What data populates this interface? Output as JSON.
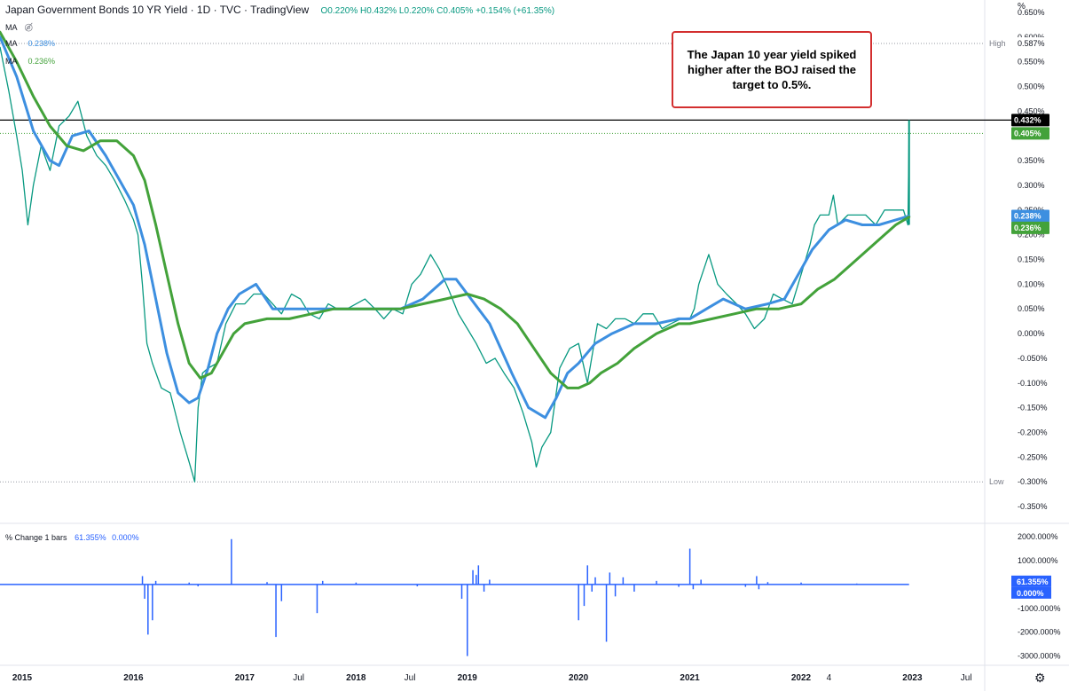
{
  "header": {
    "title": "Japan Government Bonds 10 YR Yield · 1D · TVC · TradingView",
    "ohlc": "O0.220% H0.432% L0.220% C0.405% +0.154% (+61.35%)",
    "ma1_label": "MA",
    "ma2_label": "MA",
    "ma2_value": "0.238%",
    "ma3_label": "MA",
    "ma3_value": "0.236%"
  },
  "annotation": "The Japan 10 year yield spiked higher after the BOJ raised the target to 0.5%.",
  "axis_unit": "%",
  "pane2_header": {
    "label": "% Change 1 bars",
    "value1": "61.355%",
    "value2": "0.000%"
  },
  "colors": {
    "price": "#089981",
    "price_down": "#f23645",
    "ma_blue": "#3d8fe0",
    "ma_green": "#43a23a",
    "pct_line": "#2962ff",
    "annotation_border": "#d32f2f"
  },
  "icons": {
    "eye_hidden": "eye-off-icon",
    "settings": "gear-icon"
  },
  "chart_data": [
    {
      "type": "line",
      "title": "Japan Government Bonds 10 YR Yield",
      "ylabel": "%",
      "ylim": [
        -0.375,
        0.675
      ],
      "y_ticks": [
        "0.650%",
        "0.600%",
        "0.550%",
        "0.500%",
        "0.450%",
        "0.400%",
        "0.350%",
        "0.300%",
        "0.250%",
        "0.200%",
        "0.150%",
        "0.100%",
        "0.050%",
        "0.000%",
        "-0.050%",
        "-0.100%",
        "-0.150%",
        "-0.200%",
        "-0.250%",
        "-0.300%",
        "-0.350%"
      ],
      "x_ticks": [
        "2015",
        "2016",
        "2017",
        "Jul",
        "2018",
        "Jul",
        "2019",
        "2020",
        "2021",
        "2022",
        "4",
        "2023",
        "Jul"
      ],
      "x_tick_dates": [
        2015.0,
        2016.0,
        2017.0,
        2017.5,
        2018.0,
        2018.5,
        2019.0,
        2020.0,
        2021.0,
        2022.0,
        2022.25,
        2023.0,
        2023.5
      ],
      "xlim": [
        2014.8,
        2023.65
      ],
      "high": {
        "label": "High",
        "value": 0.587,
        "text": "0.587%"
      },
      "low": {
        "label": "Low",
        "value": -0.3,
        "text": "-0.300%"
      },
      "last_price": {
        "value": 0.432,
        "text": "0.432%"
      },
      "close_price": {
        "value": 0.405,
        "text": "0.405%"
      },
      "series": [
        {
          "name": "Japan Government Bonds 10 YR Yield",
          "x": [
            2014.8,
            2014.88,
            2014.95,
            2015.0,
            2015.05,
            2015.1,
            2015.17,
            2015.25,
            2015.33,
            2015.42,
            2015.5,
            2015.58,
            2015.67,
            2015.75,
            2015.83,
            2015.92,
            2016.0,
            2016.04,
            2016.08,
            2016.12,
            2016.17,
            2016.25,
            2016.33,
            2016.42,
            2016.5,
            2016.55,
            2016.58,
            2016.62,
            2016.67,
            2016.75,
            2016.83,
            2016.92,
            2017.0,
            2017.08,
            2017.17,
            2017.25,
            2017.33,
            2017.42,
            2017.5,
            2017.58,
            2017.67,
            2017.75,
            2017.83,
            2017.92,
            2018.0,
            2018.08,
            2018.17,
            2018.25,
            2018.33,
            2018.42,
            2018.5,
            2018.58,
            2018.67,
            2018.75,
            2018.83,
            2018.92,
            2019.0,
            2019.08,
            2019.17,
            2019.25,
            2019.33,
            2019.42,
            2019.5,
            2019.58,
            2019.62,
            2019.67,
            2019.75,
            2019.83,
            2019.92,
            2020.0,
            2020.08,
            2020.17,
            2020.25,
            2020.33,
            2020.42,
            2020.5,
            2020.58,
            2020.67,
            2020.75,
            2020.83,
            2020.92,
            2021.0,
            2021.04,
            2021.08,
            2021.17,
            2021.25,
            2021.33,
            2021.42,
            2021.5,
            2021.58,
            2021.67,
            2021.75,
            2021.83,
            2021.92,
            2022.0,
            2022.04,
            2022.08,
            2022.12,
            2022.17,
            2022.25,
            2022.29,
            2022.33,
            2022.42,
            2022.5,
            2022.58,
            2022.67,
            2022.75,
            2022.83,
            2022.92,
            2022.96,
            2022.97
          ],
          "y": [
            0.58,
            0.49,
            0.4,
            0.33,
            0.22,
            0.3,
            0.38,
            0.33,
            0.42,
            0.44,
            0.47,
            0.4,
            0.36,
            0.34,
            0.31,
            0.27,
            0.23,
            0.2,
            0.1,
            -0.02,
            -0.06,
            -0.11,
            -0.12,
            -0.2,
            -0.26,
            -0.3,
            -0.15,
            -0.08,
            -0.07,
            -0.06,
            0.02,
            0.06,
            0.06,
            0.08,
            0.08,
            0.06,
            0.04,
            0.08,
            0.07,
            0.04,
            0.03,
            0.06,
            0.05,
            0.05,
            0.06,
            0.07,
            0.05,
            0.03,
            0.05,
            0.04,
            0.1,
            0.12,
            0.16,
            0.13,
            0.09,
            0.04,
            0.01,
            -0.02,
            -0.06,
            -0.05,
            -0.08,
            -0.11,
            -0.16,
            -0.22,
            -0.27,
            -0.23,
            -0.2,
            -0.07,
            -0.03,
            -0.02,
            -0.1,
            0.02,
            0.01,
            0.03,
            0.03,
            0.02,
            0.04,
            0.04,
            0.01,
            0.02,
            0.03,
            0.03,
            0.05,
            0.1,
            0.16,
            0.1,
            0.08,
            0.06,
            0.04,
            0.01,
            0.03,
            0.08,
            0.07,
            0.06,
            0.12,
            0.15,
            0.18,
            0.22,
            0.24,
            0.24,
            0.28,
            0.22,
            0.24,
            0.24,
            0.24,
            0.22,
            0.25,
            0.25,
            0.25,
            0.22,
            0.405
          ]
        },
        {
          "name": "MA",
          "value_label": "0.238%",
          "x": [
            2014.8,
            2014.95,
            2015.1,
            2015.25,
            2015.33,
            2015.45,
            2015.6,
            2015.75,
            2015.9,
            2016.0,
            2016.1,
            2016.2,
            2016.3,
            2016.4,
            2016.5,
            2016.58,
            2016.67,
            2016.75,
            2016.85,
            2016.95,
            2017.1,
            2017.25,
            2017.4,
            2017.6,
            2017.8,
            2018.0,
            2018.2,
            2018.4,
            2018.6,
            2018.8,
            2018.9,
            2019.0,
            2019.1,
            2019.2,
            2019.3,
            2019.4,
            2019.55,
            2019.7,
            2019.8,
            2019.9,
            2020.0,
            2020.15,
            2020.3,
            2020.5,
            2020.7,
            2020.9,
            2021.0,
            2021.15,
            2021.3,
            2021.5,
            2021.7,
            2021.85,
            2022.0,
            2022.1,
            2022.25,
            2022.4,
            2022.55,
            2022.7,
            2022.85,
            2022.97
          ],
          "y": [
            0.6,
            0.52,
            0.41,
            0.35,
            0.34,
            0.4,
            0.41,
            0.36,
            0.3,
            0.26,
            0.18,
            0.07,
            -0.04,
            -0.12,
            -0.14,
            -0.13,
            -0.07,
            0.0,
            0.05,
            0.08,
            0.1,
            0.05,
            0.05,
            0.05,
            0.05,
            0.05,
            0.05,
            0.05,
            0.07,
            0.11,
            0.11,
            0.08,
            0.05,
            0.02,
            -0.03,
            -0.08,
            -0.15,
            -0.17,
            -0.13,
            -0.08,
            -0.06,
            -0.02,
            0.0,
            0.02,
            0.02,
            0.03,
            0.03,
            0.05,
            0.07,
            0.05,
            0.06,
            0.07,
            0.13,
            0.17,
            0.21,
            0.23,
            0.22,
            0.22,
            0.23,
            0.238
          ]
        },
        {
          "name": "MA",
          "value_label": "0.236%",
          "x": [
            2014.8,
            2014.95,
            2015.1,
            2015.25,
            2015.4,
            2015.55,
            2015.7,
            2015.85,
            2016.0,
            2016.1,
            2016.2,
            2016.3,
            2016.4,
            2016.5,
            2016.6,
            2016.7,
            2016.8,
            2016.9,
            2017.0,
            2017.2,
            2017.4,
            2017.6,
            2017.8,
            2018.0,
            2018.2,
            2018.4,
            2018.6,
            2018.8,
            2019.0,
            2019.15,
            2019.3,
            2019.45,
            2019.6,
            2019.75,
            2019.9,
            2020.0,
            2020.1,
            2020.2,
            2020.35,
            2020.5,
            2020.7,
            2020.9,
            2021.0,
            2021.2,
            2021.4,
            2021.6,
            2021.8,
            2022.0,
            2022.15,
            2022.3,
            2022.45,
            2022.6,
            2022.75,
            2022.85,
            2022.97
          ],
          "y": [
            0.61,
            0.55,
            0.48,
            0.42,
            0.38,
            0.37,
            0.39,
            0.39,
            0.36,
            0.31,
            0.22,
            0.12,
            0.02,
            -0.06,
            -0.09,
            -0.08,
            -0.04,
            0.0,
            0.02,
            0.03,
            0.03,
            0.04,
            0.05,
            0.05,
            0.05,
            0.05,
            0.06,
            0.07,
            0.08,
            0.07,
            0.05,
            0.02,
            -0.03,
            -0.08,
            -0.11,
            -0.11,
            -0.1,
            -0.08,
            -0.06,
            -0.03,
            0.0,
            0.02,
            0.02,
            0.03,
            0.04,
            0.05,
            0.05,
            0.06,
            0.09,
            0.11,
            0.14,
            0.17,
            0.2,
            0.22,
            0.236
          ]
        }
      ]
    },
    {
      "type": "bar",
      "title": "% Change 1 bars",
      "ylabel": "%",
      "ylim": [
        -3200,
        2300
      ],
      "y_ticks": [
        "2000.000%",
        "1000.000%",
        "0.000%",
        "-1000.000%",
        "-2000.000%",
        "-3000.000%"
      ],
      "y_tick_values": [
        2000,
        1000,
        0,
        -1000,
        -2000,
        -3000
      ],
      "last_value": {
        "value": 61.355,
        "text": "61.355%"
      },
      "second_value": {
        "value": 0.0,
        "text": "0.000%"
      },
      "series": [
        {
          "name": "% Change 1 bars",
          "x": [
            2016.08,
            2016.1,
            2016.13,
            2016.17,
            2016.2,
            2016.5,
            2016.58,
            2016.88,
            2017.2,
            2017.28,
            2017.33,
            2017.65,
            2017.7,
            2018.0,
            2018.55,
            2018.95,
            2019.0,
            2019.05,
            2019.08,
            2019.1,
            2019.15,
            2019.2,
            2020.0,
            2020.05,
            2020.08,
            2020.12,
            2020.15,
            2020.25,
            2020.28,
            2020.33,
            2020.4,
            2020.5,
            2020.7,
            2020.9,
            2021.0,
            2021.03,
            2021.1,
            2021.5,
            2021.6,
            2021.62,
            2021.7,
            2022.0,
            2022.5
          ],
          "y": [
            350,
            -600,
            -2100,
            -1500,
            150,
            80,
            -80,
            1900,
            100,
            -2200,
            -700,
            -1200,
            150,
            80,
            -80,
            -600,
            -3000,
            600,
            400,
            800,
            -300,
            200,
            -1500,
            -900,
            800,
            -300,
            300,
            -2400,
            500,
            -500,
            300,
            -300,
            150,
            -100,
            1500,
            -200,
            200,
            -100,
            350,
            -200,
            100,
            80,
            40
          ]
        }
      ]
    }
  ]
}
